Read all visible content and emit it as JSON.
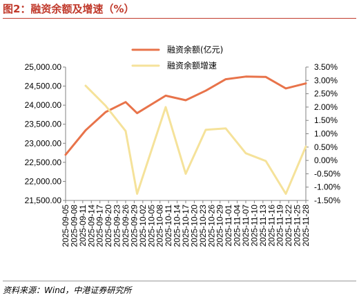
{
  "figure": {
    "title": "图2：融资余额及增速（%）",
    "source": "资料来源：Wind，中港证券研究所"
  },
  "chart_data": {
    "type": "line",
    "categories": [
      "2025-09-05",
      "2025-09-08",
      "2025-09-11",
      "2025-09-14",
      "2025-09-17",
      "2025-09-20",
      "2025-09-23",
      "2025-09-26",
      "2025-09-29",
      "2025-10-02",
      "2025-10-05",
      "2025-10-08",
      "2025-10-11",
      "2025-10-14",
      "2025-10-17",
      "2025-10-20",
      "2025-10-23",
      "2025-10-26",
      "2025-10-29",
      "2025-11-01",
      "2025-11-04",
      "2025-11-07",
      "2025-11-10",
      "2025-11-13",
      "2025-11-16",
      "2025-11-19",
      "2025-11-22",
      "2025-11-25",
      "2025-11-28"
    ],
    "tick_labels": [
      "2025-09-05",
      "2025-09-08",
      "2025-09-11",
      "2025-09-14",
      "2025-09-17",
      "2025-09-20",
      "2025-09-23",
      "2025-09-26",
      "2025-09-29",
      "2025-10-02",
      "2025-10-05",
      "2025-10-08",
      "2025-10-11",
      "2025-10-14",
      "2025-10-17",
      "2025-10-20",
      "2025-10-23",
      "2025-10-26",
      "2025-10-29",
      "2025-11-01",
      "2025-11-04",
      "2025-11-07",
      "2025-11-10",
      "2025-11-13",
      "2025-11-16",
      "2025-11-19",
      "2025-11-22",
      "2025-11-25",
      "2025-11-28"
    ],
    "series": [
      {
        "name": "融资余额(亿元)",
        "axis": "left",
        "color": "#e8734a",
        "points": [
          {
            "x": "2025-09-05",
            "y": 22700
          },
          {
            "x": "2025-09-12",
            "y": 23340
          },
          {
            "x": "2025-09-19",
            "y": 23820
          },
          {
            "x": "2025-09-26",
            "y": 24080
          },
          {
            "x": "2025-09-30",
            "y": 23790
          },
          {
            "x": "2025-10-10",
            "y": 24250
          },
          {
            "x": "2025-10-17",
            "y": 24130
          },
          {
            "x": "2025-10-24",
            "y": 24380
          },
          {
            "x": "2025-10-31",
            "y": 24680
          },
          {
            "x": "2025-11-07",
            "y": 24750
          },
          {
            "x": "2025-11-14",
            "y": 24740
          },
          {
            "x": "2025-11-21",
            "y": 24440
          },
          {
            "x": "2025-11-28",
            "y": 24570
          }
        ]
      },
      {
        "name": "融资余额增速",
        "axis": "right",
        "color": "#f5e29a",
        "points": [
          {
            "x": "2025-09-12",
            "y": 2.8
          },
          {
            "x": "2025-09-19",
            "y": 2.05
          },
          {
            "x": "2025-09-26",
            "y": 1.1
          },
          {
            "x": "2025-09-30",
            "y": -1.25
          },
          {
            "x": "2025-10-10",
            "y": 2.0
          },
          {
            "x": "2025-10-17",
            "y": -0.5
          },
          {
            "x": "2025-10-24",
            "y": 1.15
          },
          {
            "x": "2025-10-31",
            "y": 1.2
          },
          {
            "x": "2025-11-07",
            "y": 0.27
          },
          {
            "x": "2025-11-14",
            "y": -0.02
          },
          {
            "x": "2025-11-21",
            "y": -1.25
          },
          {
            "x": "2025-11-28",
            "y": 0.52
          }
        ]
      }
    ],
    "y_left": {
      "ylim": [
        21500,
        25000
      ],
      "ticks": [
        "21,500.00",
        "22,000.00",
        "22,500.00",
        "23,000.00",
        "23,500.00",
        "24,000.00",
        "24,500.00",
        "25,000.00"
      ]
    },
    "y_right": {
      "ylim": [
        -1.5,
        3.5
      ],
      "ticks": [
        "-1.50%",
        "-1.00%",
        "-0.50%",
        "0.00%",
        "0.50%",
        "1.00%",
        "1.50%",
        "2.00%",
        "2.50%",
        "3.00%",
        "3.50%"
      ]
    },
    "grid": false,
    "legend": "top-center"
  }
}
